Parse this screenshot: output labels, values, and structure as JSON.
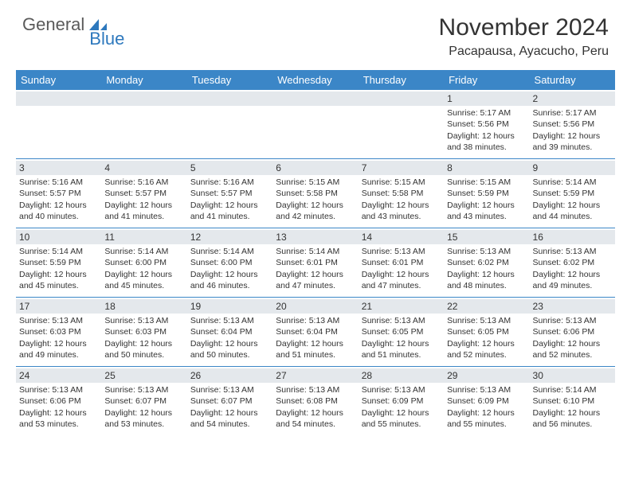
{
  "logo": {
    "text1": "General",
    "text2": "Blue"
  },
  "title": "November 2024",
  "location": "Pacapausa, Ayacucho, Peru",
  "colors": {
    "header_bg": "#3b86c7",
    "band_bg": "#e4e8ec",
    "brand_blue": "#2d78bd",
    "text": "#333333"
  },
  "day_names": [
    "Sunday",
    "Monday",
    "Tuesday",
    "Wednesday",
    "Thursday",
    "Friday",
    "Saturday"
  ],
  "weeks": [
    [
      {
        "empty": true
      },
      {
        "empty": true
      },
      {
        "empty": true
      },
      {
        "empty": true
      },
      {
        "empty": true
      },
      {
        "n": "1",
        "sr": "5:17 AM",
        "ss": "5:56 PM",
        "dl": "12 hours and 38 minutes."
      },
      {
        "n": "2",
        "sr": "5:17 AM",
        "ss": "5:56 PM",
        "dl": "12 hours and 39 minutes."
      }
    ],
    [
      {
        "n": "3",
        "sr": "5:16 AM",
        "ss": "5:57 PM",
        "dl": "12 hours and 40 minutes."
      },
      {
        "n": "4",
        "sr": "5:16 AM",
        "ss": "5:57 PM",
        "dl": "12 hours and 41 minutes."
      },
      {
        "n": "5",
        "sr": "5:16 AM",
        "ss": "5:57 PM",
        "dl": "12 hours and 41 minutes."
      },
      {
        "n": "6",
        "sr": "5:15 AM",
        "ss": "5:58 PM",
        "dl": "12 hours and 42 minutes."
      },
      {
        "n": "7",
        "sr": "5:15 AM",
        "ss": "5:58 PM",
        "dl": "12 hours and 43 minutes."
      },
      {
        "n": "8",
        "sr": "5:15 AM",
        "ss": "5:59 PM",
        "dl": "12 hours and 43 minutes."
      },
      {
        "n": "9",
        "sr": "5:14 AM",
        "ss": "5:59 PM",
        "dl": "12 hours and 44 minutes."
      }
    ],
    [
      {
        "n": "10",
        "sr": "5:14 AM",
        "ss": "5:59 PM",
        "dl": "12 hours and 45 minutes."
      },
      {
        "n": "11",
        "sr": "5:14 AM",
        "ss": "6:00 PM",
        "dl": "12 hours and 45 minutes."
      },
      {
        "n": "12",
        "sr": "5:14 AM",
        "ss": "6:00 PM",
        "dl": "12 hours and 46 minutes."
      },
      {
        "n": "13",
        "sr": "5:14 AM",
        "ss": "6:01 PM",
        "dl": "12 hours and 47 minutes."
      },
      {
        "n": "14",
        "sr": "5:13 AM",
        "ss": "6:01 PM",
        "dl": "12 hours and 47 minutes."
      },
      {
        "n": "15",
        "sr": "5:13 AM",
        "ss": "6:02 PM",
        "dl": "12 hours and 48 minutes."
      },
      {
        "n": "16",
        "sr": "5:13 AM",
        "ss": "6:02 PM",
        "dl": "12 hours and 49 minutes."
      }
    ],
    [
      {
        "n": "17",
        "sr": "5:13 AM",
        "ss": "6:03 PM",
        "dl": "12 hours and 49 minutes."
      },
      {
        "n": "18",
        "sr": "5:13 AM",
        "ss": "6:03 PM",
        "dl": "12 hours and 50 minutes."
      },
      {
        "n": "19",
        "sr": "5:13 AM",
        "ss": "6:04 PM",
        "dl": "12 hours and 50 minutes."
      },
      {
        "n": "20",
        "sr": "5:13 AM",
        "ss": "6:04 PM",
        "dl": "12 hours and 51 minutes."
      },
      {
        "n": "21",
        "sr": "5:13 AM",
        "ss": "6:05 PM",
        "dl": "12 hours and 51 minutes."
      },
      {
        "n": "22",
        "sr": "5:13 AM",
        "ss": "6:05 PM",
        "dl": "12 hours and 52 minutes."
      },
      {
        "n": "23",
        "sr": "5:13 AM",
        "ss": "6:06 PM",
        "dl": "12 hours and 52 minutes."
      }
    ],
    [
      {
        "n": "24",
        "sr": "5:13 AM",
        "ss": "6:06 PM",
        "dl": "12 hours and 53 minutes."
      },
      {
        "n": "25",
        "sr": "5:13 AM",
        "ss": "6:07 PM",
        "dl": "12 hours and 53 minutes."
      },
      {
        "n": "26",
        "sr": "5:13 AM",
        "ss": "6:07 PM",
        "dl": "12 hours and 54 minutes."
      },
      {
        "n": "27",
        "sr": "5:13 AM",
        "ss": "6:08 PM",
        "dl": "12 hours and 54 minutes."
      },
      {
        "n": "28",
        "sr": "5:13 AM",
        "ss": "6:09 PM",
        "dl": "12 hours and 55 minutes."
      },
      {
        "n": "29",
        "sr": "5:13 AM",
        "ss": "6:09 PM",
        "dl": "12 hours and 55 minutes."
      },
      {
        "n": "30",
        "sr": "5:14 AM",
        "ss": "6:10 PM",
        "dl": "12 hours and 56 minutes."
      }
    ]
  ],
  "labels": {
    "sunrise": "Sunrise: ",
    "sunset": "Sunset: ",
    "daylight": "Daylight: "
  }
}
